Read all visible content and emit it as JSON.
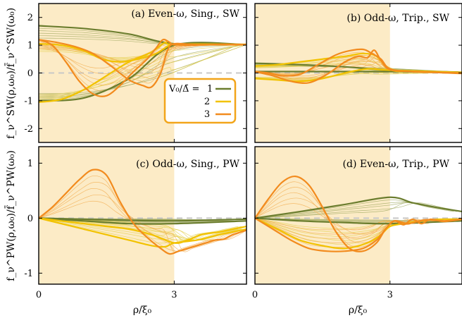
{
  "chart_data": {
    "type": "line",
    "layout": "2x2 grid",
    "x_tick_labels": [
      "0",
      "3"
    ],
    "xlabel": "ρ/ξ₀",
    "xlim": [
      0,
      4.6
    ],
    "shaded_region_x": [
      0,
      3
    ],
    "colors": {
      "shade": "#fcebc6",
      "v1": "#6b7d2e",
      "v2": "#f2c200",
      "v3": "#f28b1e",
      "thin": [
        "#9aa45a",
        "#e3cd45",
        "#f2a948"
      ],
      "zero_line": "#c8c8c8",
      "legend_border": "#f2a51a"
    },
    "legend": {
      "panel": 0,
      "placement": "right-middle",
      "label_prefix": "V₀/Δ̄ =",
      "entries": [
        {
          "label": "1",
          "color": "#6b7d2e"
        },
        {
          "label": "2",
          "color": "#f2c200"
        },
        {
          "label": "3",
          "color": "#f28b1e"
        }
      ]
    },
    "panels": [
      {
        "id": "a",
        "title": "(a) Even-ω, Sing., SW",
        "ylabel": "f_ν^SW(ρ,ω₀)/f̄_ν^SW(ω₀)",
        "ylim": [
          -2.5,
          2.5
        ],
        "y_ticks": [
          -2,
          -1,
          0,
          1,
          2
        ],
        "y_tick_labels": [
          "-2",
          "-1",
          "0",
          "1",
          "2"
        ],
        "series": [
          {
            "group": 1,
            "x": [
              0,
              1,
              2,
              3,
              4.6
            ],
            "y": [
              1.7,
              1.6,
              1.4,
              1.05,
              1.03
            ]
          },
          {
            "group": 1,
            "x": [
              0,
              1,
              2,
              3,
              4.6
            ],
            "y": [
              -1.0,
              -0.9,
              -0.2,
              1.0,
              1.02
            ]
          },
          {
            "group": 2,
            "x": [
              0,
              0.5,
              1.0,
              1.4,
              1.8,
              2.2,
              2.6,
              2.9,
              3.1,
              4.6
            ],
            "y": [
              1.05,
              1.0,
              0.8,
              0.5,
              0.4,
              0.5,
              0.7,
              1.0,
              1.04,
              1.03
            ]
          },
          {
            "group": 2,
            "x": [
              0,
              0.5,
              1.0,
              1.5,
              2.0,
              2.5,
              2.8,
              3.0,
              4.6
            ],
            "y": [
              -1.05,
              -0.95,
              -0.6,
              -0.1,
              0.4,
              0.75,
              1.1,
              1.02,
              1.02
            ]
          },
          {
            "group": 3,
            "x": [
              0,
              0.3,
              0.6,
              0.9,
              1.2,
              1.5,
              1.8,
              2.1,
              2.4,
              2.6,
              2.75,
              2.9,
              3.0,
              3.5,
              4.0,
              4.6
            ],
            "y": [
              1.2,
              1.0,
              0.4,
              -0.3,
              -0.75,
              -0.82,
              -0.45,
              0.05,
              0.5,
              0.9,
              1.2,
              1.1,
              1.02,
              1.0,
              1.03,
              1.02
            ]
          },
          {
            "group": 3,
            "x": [
              0,
              0.4,
              0.8,
              1.2,
              1.6,
              2.0,
              2.3,
              2.5,
              2.7,
              2.85,
              3.0,
              3.5,
              4.6
            ],
            "y": [
              1.2,
              1.1,
              0.95,
              0.7,
              0.25,
              -0.25,
              -0.45,
              -0.5,
              0.0,
              0.8,
              1.05,
              1.02,
              1.02
            ]
          }
        ]
      },
      {
        "id": "b",
        "title": "(b) Odd-ω, Trip., SW",
        "ylabel": "",
        "ylim": [
          -2.5,
          2.5
        ],
        "y_ticks": [
          -2,
          -1,
          0,
          1,
          2
        ],
        "y_tick_labels": [],
        "series": [
          {
            "group": 1,
            "x": [
              0,
              1,
              2,
              3,
              4.6
            ],
            "y": [
              0.35,
              0.3,
              0.22,
              0.1,
              0.03
            ]
          },
          {
            "group": 1,
            "x": [
              0,
              1,
              2,
              3,
              4.6
            ],
            "y": [
              0.05,
              0.05,
              0.05,
              0.05,
              0.02
            ]
          },
          {
            "group": 2,
            "x": [
              0,
              0.5,
              1.0,
              1.5,
              2.0,
              2.4,
              2.7,
              3.0,
              3.5,
              4.6
            ],
            "y": [
              0.25,
              0.3,
              0.4,
              0.5,
              0.6,
              0.7,
              0.6,
              0.12,
              0.05,
              0.02
            ]
          },
          {
            "group": 2,
            "x": [
              0,
              0.5,
              1.0,
              1.5,
              2.0,
              2.5,
              3.0,
              4.6
            ],
            "y": [
              -0.2,
              -0.25,
              -0.3,
              -0.2,
              0.0,
              0.15,
              0.1,
              0.02
            ]
          },
          {
            "group": 3,
            "x": [
              0,
              0.4,
              0.8,
              1.2,
              1.6,
              2.0,
              2.3,
              2.5,
              2.65,
              2.8,
              3.0,
              3.5,
              4.0,
              4.6
            ],
            "y": [
              0.05,
              -0.1,
              -0.3,
              -0.35,
              -0.05,
              0.4,
              0.6,
              0.55,
              0.82,
              0.45,
              0.12,
              0.05,
              0.02,
              -0.02
            ]
          },
          {
            "group": 3,
            "x": [
              0,
              0.3,
              0.6,
              1.0,
              1.4,
              1.8,
              2.1,
              2.4,
              2.6,
              2.8,
              3.0,
              3.5,
              4.6
            ],
            "y": [
              0.05,
              0.0,
              -0.1,
              -0.05,
              0.3,
              0.65,
              0.8,
              0.85,
              0.7,
              0.5,
              0.15,
              0.05,
              0.0
            ]
          }
        ]
      },
      {
        "id": "c",
        "title": "(c) Odd-ω, Sing., PW",
        "ylabel": "f_ν^PW(ρ,ω₀)/f̄_ν^PW(ω₀)",
        "ylim": [
          -1.2,
          1.3
        ],
        "y_ticks": [
          -1,
          0,
          1
        ],
        "y_tick_labels": [
          "-1",
          "0",
          "1"
        ],
        "series": [
          {
            "group": 1,
            "x": [
              0,
              1,
              2,
              3,
              4.0,
              4.6
            ],
            "y": [
              0,
              -0.02,
              -0.04,
              -0.05,
              -0.03,
              -0.02
            ]
          },
          {
            "group": 1,
            "x": [
              0,
              1,
              2,
              3,
              4.6
            ],
            "y": [
              0,
              -0.05,
              -0.1,
              -0.1,
              -0.05
            ]
          },
          {
            "group": 2,
            "x": [
              0,
              0.5,
              1.0,
              1.5,
              2.0,
              2.5,
              3.0,
              3.3,
              3.6,
              4.0,
              4.3,
              4.6
            ],
            "y": [
              0,
              -0.05,
              -0.1,
              -0.15,
              -0.2,
              -0.3,
              -0.45,
              -0.4,
              -0.3,
              -0.25,
              -0.2,
              -0.15
            ]
          },
          {
            "group": 2,
            "x": [
              0,
              0.5,
              1.0,
              1.5,
              2.0,
              2.5,
              2.8,
              3.0,
              3.5,
              4.0,
              4.6
            ],
            "y": [
              0,
              -0.1,
              -0.2,
              -0.3,
              -0.4,
              -0.5,
              -0.52,
              -0.45,
              -0.4,
              -0.3,
              -0.2
            ]
          },
          {
            "group": 3,
            "x": [
              0,
              0.3,
              0.6,
              0.9,
              1.2,
              1.5,
              1.8,
              2.1,
              2.4,
              2.7,
              2.9,
              3.1,
              3.3,
              3.5,
              3.7,
              3.9,
              4.1,
              4.3,
              4.6
            ],
            "y": [
              0,
              0.2,
              0.45,
              0.7,
              0.88,
              0.78,
              0.3,
              -0.1,
              -0.35,
              -0.55,
              -0.65,
              -0.6,
              -0.55,
              -0.5,
              -0.45,
              -0.4,
              -0.38,
              -0.3,
              -0.22
            ]
          }
        ]
      },
      {
        "id": "d",
        "title": "(d) Even-ω, Trip., PW",
        "ylabel": "",
        "ylim": [
          -1.2,
          1.3
        ],
        "y_ticks": [
          -1,
          0,
          1
        ],
        "y_tick_labels": [],
        "series": [
          {
            "group": 1,
            "x": [
              0,
              1,
              2,
              3,
              3.5,
              4.0,
              4.6
            ],
            "y": [
              0,
              0.12,
              0.25,
              0.38,
              0.28,
              0.2,
              0.12
            ]
          },
          {
            "group": 1,
            "x": [
              0,
              1,
              2,
              3,
              4.6
            ],
            "y": [
              0,
              -0.05,
              -0.08,
              -0.1,
              -0.05
            ]
          },
          {
            "group": 2,
            "x": [
              0,
              0.5,
              1.0,
              1.5,
              2.0,
              2.5,
              2.8,
              3.0,
              3.3,
              3.7,
              4.1,
              4.6
            ],
            "y": [
              0,
              -0.2,
              -0.4,
              -0.5,
              -0.55,
              -0.45,
              -0.3,
              -0.15,
              -0.1,
              -0.05,
              -0.02,
              -0.02
            ]
          },
          {
            "group": 3,
            "x": [
              0,
              0.3,
              0.6,
              0.9,
              1.2,
              1.5,
              1.8,
              2.1,
              2.4,
              2.7,
              2.9,
              3.1,
              3.3,
              3.5,
              3.7,
              3.9,
              4.2,
              4.6
            ],
            "y": [
              0,
              0.35,
              0.65,
              0.76,
              0.6,
              0.2,
              -0.25,
              -0.55,
              -0.6,
              -0.45,
              -0.2,
              -0.05,
              -0.12,
              -0.02,
              -0.1,
              -0.02,
              -0.06,
              -0.02
            ]
          },
          {
            "group": 3,
            "x": [
              0,
              0.4,
              0.8,
              1.2,
              1.6,
              2.0,
              2.4,
              2.7,
              2.9,
              3.1,
              3.4,
              3.8,
              4.2,
              4.6
            ],
            "y": [
              0,
              -0.2,
              -0.4,
              -0.55,
              -0.6,
              -0.6,
              -0.55,
              -0.4,
              -0.2,
              -0.05,
              -0.1,
              -0.03,
              -0.05,
              -0.02
            ]
          }
        ]
      }
    ]
  }
}
